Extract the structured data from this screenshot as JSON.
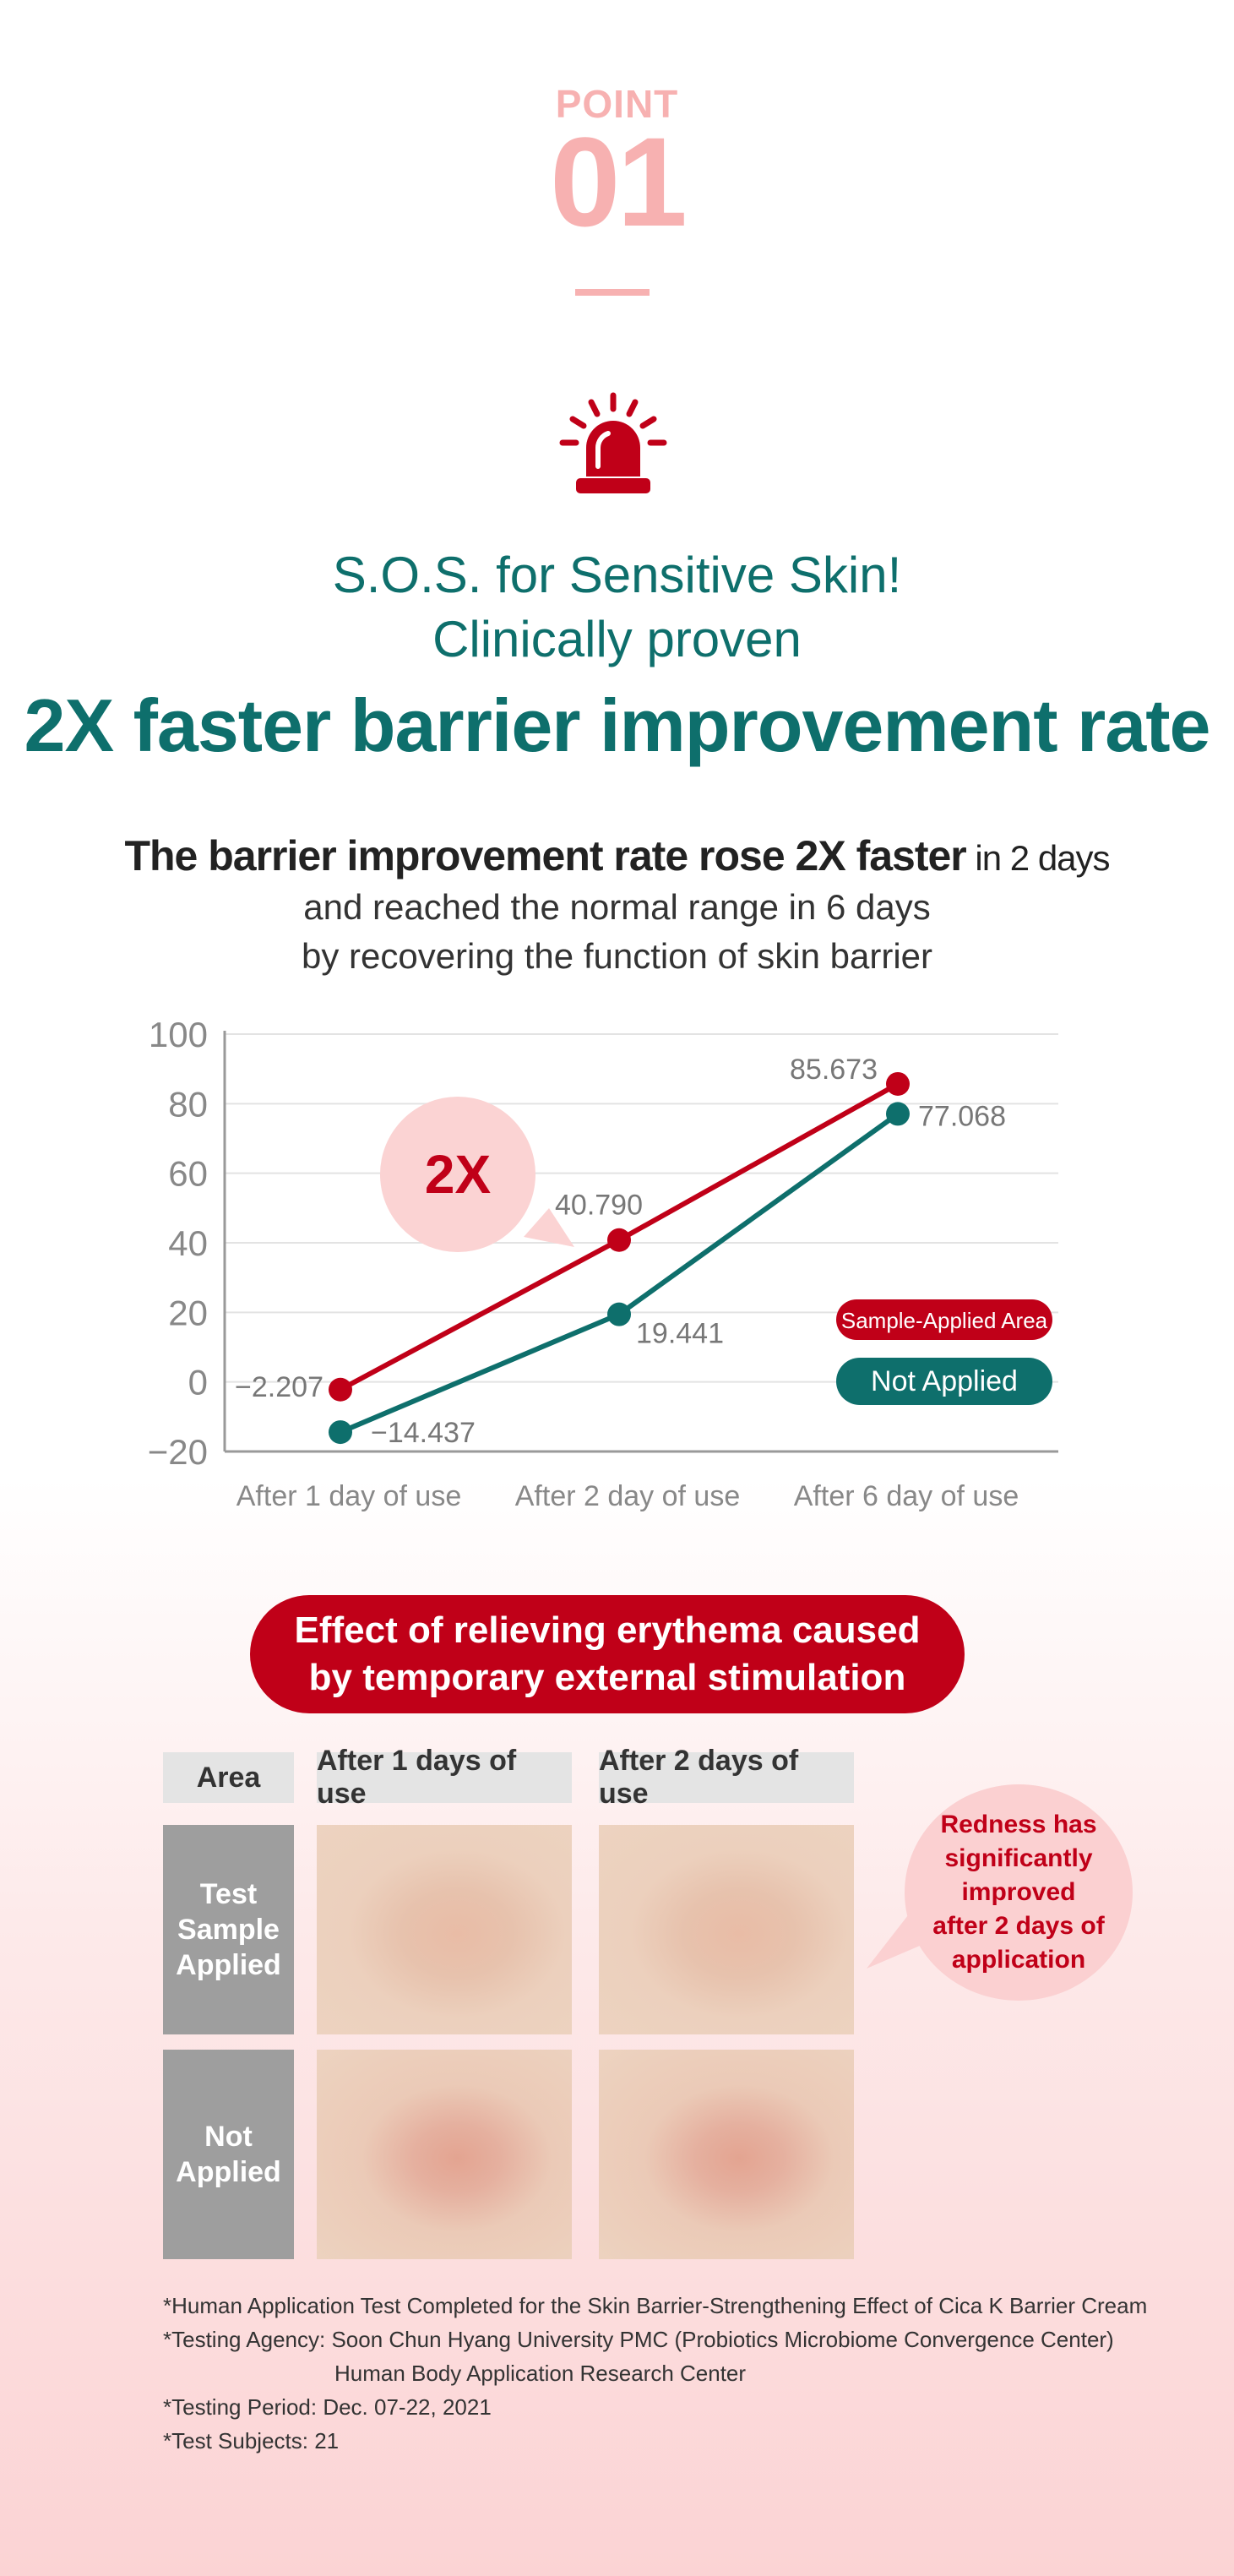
{
  "point": {
    "label": "POINT",
    "number": "01"
  },
  "headline": {
    "line1": "S.O.S. for Sensitive Skin!",
    "line2": "Clinically proven",
    "line3": "2X faster barrier improvement rate"
  },
  "subtitle": {
    "line1_bold": "The barrier improvement rate rose 2X faster",
    "line1_light": " in 2 days",
    "line2": "and reached the normal range in 6 days",
    "line3": "by recovering the function of skin barrier"
  },
  "chart_data": {
    "type": "line",
    "categories": [
      "After 1 day of use",
      "After 2 day of use",
      "After 6 day of use"
    ],
    "series": [
      {
        "name": "Sample-Applied Area",
        "values": [
          -2.207,
          40.79,
          85.673
        ],
        "labels": [
          "-2.207",
          "40.790",
          "85.673"
        ],
        "color": "#c00018"
      },
      {
        "name": "Not Applied",
        "values": [
          -14.437,
          19.441,
          77.068
        ],
        "labels": [
          "-14.437",
          "19.441",
          "77.068"
        ],
        "color": "#0e6f6c"
      }
    ],
    "yticks": [
      100,
      80,
      60,
      40,
      20,
      0,
      -20
    ],
    "ylim": [
      -20,
      100
    ],
    "grid": true,
    "annotation": "2X",
    "legend_position": "right"
  },
  "erythema": {
    "title_line1": "Effect of relieving erythema caused",
    "title_line2": "by temporary external stimulation",
    "headers": {
      "area": "Area",
      "day1": "After 1 days of use",
      "day2": "After 2 days of use"
    },
    "rows": {
      "applied": [
        "Test",
        "Sample",
        "Applied"
      ],
      "not_applied": [
        "Not",
        "Applied"
      ]
    },
    "callout": [
      "Redness has",
      "significantly",
      "improved",
      "after 2 days of",
      "application"
    ]
  },
  "footnotes": {
    "line1": "*Human Application Test Completed for the Skin Barrier-Strengthening Effect of Cica K Barrier Cream",
    "line2": "*Testing Agency: Soon Chun Hyang University PMC (Probiotics Microbiome Convergence Center)",
    "line3": "Human Body Application Research Center",
    "line4": "*Testing Period: Dec. 07-22, 2021",
    "line5": "*Test Subjects: 21"
  },
  "colors": {
    "accent_pink": "#f7b1b1",
    "teal": "#0e6f6c",
    "red": "#c00018"
  }
}
